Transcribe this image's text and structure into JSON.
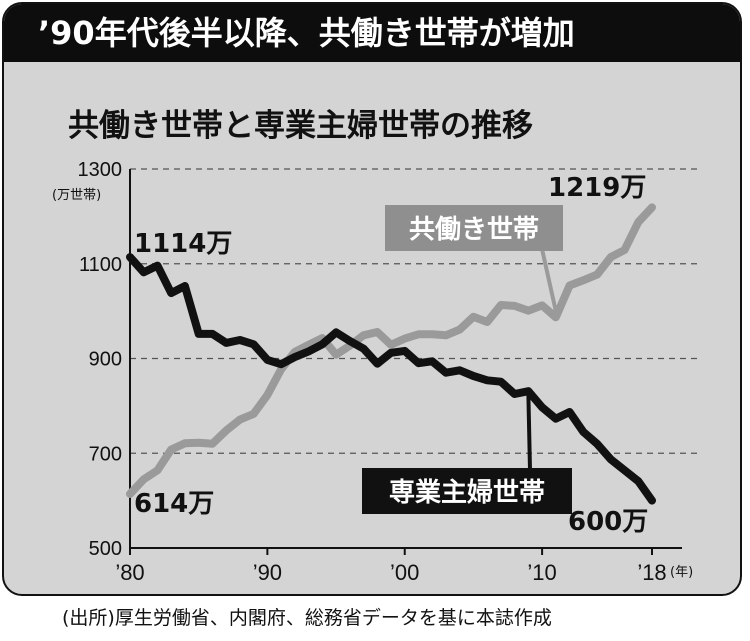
{
  "headline": "’90年代後半以降、共働き世帯が増加",
  "source": "(出所)厚生労働省、内閣府、総務省データを基に本誌作成",
  "chart_data": {
    "type": "line",
    "title": "共働き世帯と専業主婦世帯の推移",
    "ylabel": "(万世帯)",
    "xlabel": "(年)",
    "ylim": [
      500,
      1300
    ],
    "yticks": [
      "500",
      "700",
      "900",
      "1100",
      "1300"
    ],
    "xticks": [
      {
        "year": 1980,
        "label": "’80"
      },
      {
        "year": 1990,
        "label": "’90"
      },
      {
        "year": 2000,
        "label": "’00"
      },
      {
        "year": 2010,
        "label": "’10"
      },
      {
        "year": 2018,
        "label": "’18"
      }
    ],
    "grid": true,
    "x": [
      1980,
      1981,
      1982,
      1983,
      1984,
      1985,
      1986,
      1987,
      1988,
      1989,
      1990,
      1991,
      1992,
      1993,
      1994,
      1995,
      1996,
      1997,
      1998,
      1999,
      2000,
      2001,
      2002,
      2003,
      2004,
      2005,
      2006,
      2007,
      2008,
      2009,
      2010,
      2011,
      2012,
      2013,
      2014,
      2015,
      2016,
      2017,
      2018
    ],
    "series": [
      {
        "name": "共働き世帯",
        "color": "#9a9a9a",
        "values": [
          614,
          645,
          664,
          708,
          721,
          722,
          720,
          748,
          771,
          783,
          823,
          877,
          914,
          929,
          943,
          908,
          927,
          949,
          956,
          929,
          942,
          951,
          951,
          949,
          961,
          988,
          977,
          1013,
          1011,
          1001,
          1012,
          987,
          1054,
          1065,
          1077,
          1114,
          1129,
          1188,
          1219
        ]
      },
      {
        "name": "専業主婦世帯",
        "color": "#111111",
        "values": [
          1114,
          1082,
          1096,
          1038,
          1053,
          952,
          952,
          933,
          939,
          930,
          897,
          888,
          903,
          915,
          930,
          955,
          937,
          921,
          889,
          912,
          916,
          890,
          894,
          870,
          875,
          863,
          854,
          851,
          825,
          831,
          797,
          773,
          787,
          745,
          720,
          687,
          664,
          641,
          600
        ]
      }
    ],
    "annotations": {
      "first_dual": "614万",
      "last_dual": "1219万",
      "first_housewife": "1114万",
      "last_housewife": "600万"
    }
  }
}
